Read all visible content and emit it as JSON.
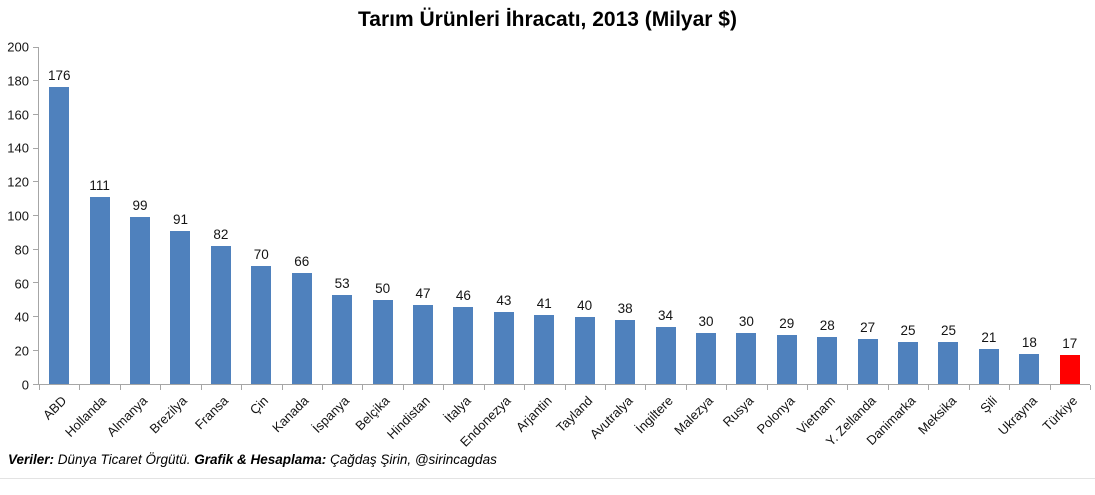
{
  "chart_data": {
    "type": "bar",
    "title": "Tarım Ürünleri İhracatı, 2013 (Milyar $)",
    "categories": [
      "ABD",
      "Hollanda",
      "Almanya",
      "Brezilya",
      "Fransa",
      "Çin",
      "Kanada",
      "İspanya",
      "Belçika",
      "Hindistan",
      "İtalya",
      "Endonezya",
      "Arjantin",
      "Tayland",
      "Avutralya",
      "İngiltere",
      "Malezya",
      "Rusya",
      "Polonya",
      "Vietnam",
      "Y. Zellanda",
      "Danimarka",
      "Meksika",
      "Şili",
      "Ukrayna",
      "Türkiye"
    ],
    "values": [
      176,
      111,
      99,
      91,
      82,
      70,
      66,
      53,
      50,
      47,
      46,
      43,
      41,
      40,
      38,
      34,
      30,
      30,
      29,
      28,
      27,
      25,
      25,
      21,
      18,
      17
    ],
    "xlabel": "",
    "ylabel": "",
    "ylim": [
      0,
      200
    ],
    "yticks": [
      0,
      20,
      40,
      60,
      80,
      100,
      120,
      140,
      160,
      180,
      200
    ],
    "grid": false,
    "legend": false,
    "bar_color_default": "#4f81bd",
    "bar_color_highlight": "#ff0000",
    "highlight_index": 25,
    "axis_color": "#a6a6a6",
    "text_color": "#141414"
  },
  "footer": {
    "segments": [
      {
        "text": "Veriler:",
        "bold": true
      },
      {
        "text": " Dünya Ticaret Örgütü. ",
        "bold": false
      },
      {
        "text": "Grafik & Hesaplama:",
        "bold": true
      },
      {
        "text": " Çağdaş Şirin, @sirincagdas",
        "bold": false
      }
    ]
  }
}
